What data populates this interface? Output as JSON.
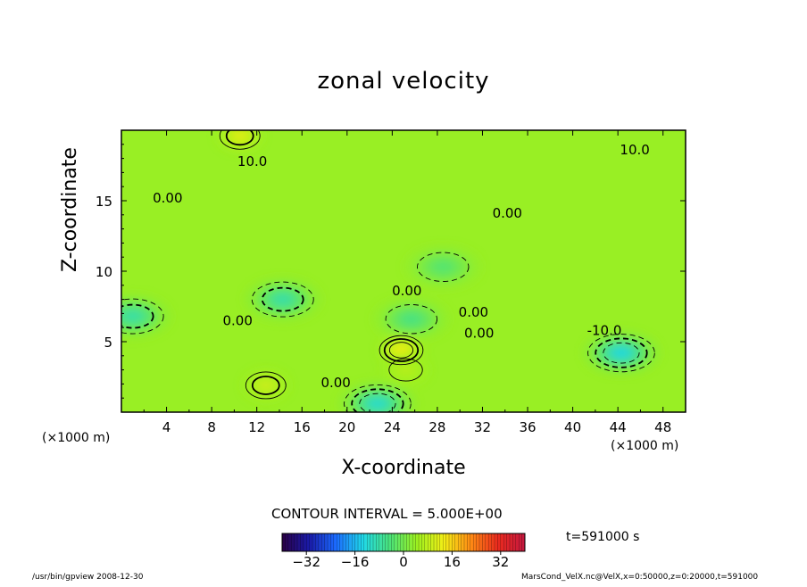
{
  "chart_data": {
    "type": "heatmap",
    "title": "zonal velocity",
    "xlabel": "X-coordinate",
    "ylabel": "Z-coordinate",
    "x_unit_label": "(×1000 m)",
    "z_unit_label": "(×1000 m)",
    "xlim": [
      0,
      50
    ],
    "ylim": [
      0,
      20
    ],
    "x_ticks": [
      4,
      8,
      12,
      16,
      20,
      24,
      28,
      32,
      36,
      40,
      44,
      48
    ],
    "y_ticks": [
      5,
      10,
      15
    ],
    "contour_interval_text": "CONTOUR INTERVAL = 5.000E+00",
    "contour_labels": [
      {
        "text": "10.0",
        "x": 11.6,
        "z": 17.8
      },
      {
        "text": "10.0",
        "x": 45.5,
        "z": 18.6
      },
      {
        "text": "0.00",
        "x": 4.1,
        "z": 15.2
      },
      {
        "text": "0.00",
        "x": 34.2,
        "z": 14.1
      },
      {
        "text": "0.00",
        "x": 25.3,
        "z": 8.6
      },
      {
        "text": "0.00",
        "x": 31.2,
        "z": 7.1
      },
      {
        "text": "0.00",
        "x": 31.7,
        "z": 5.6
      },
      {
        "text": "0.00",
        "x": 10.3,
        "z": 6.5
      },
      {
        "text": "0.00",
        "x": 19.0,
        "z": 2.1
      },
      {
        "text": "-10.0",
        "x": 42.8,
        "z": 5.8
      }
    ],
    "features": [
      {
        "sign": "negative",
        "x": 14.3,
        "z": 8.0,
        "peak": -12
      },
      {
        "sign": "negative",
        "x": 44.3,
        "z": 4.2,
        "peak": -18
      },
      {
        "sign": "negative",
        "x": 22.7,
        "z": 0.6,
        "peak": -16
      },
      {
        "sign": "negative",
        "x": 1.0,
        "z": 6.8,
        "peak": -12
      },
      {
        "sign": "negative",
        "x": 25.7,
        "z": 6.6,
        "peak": -8
      },
      {
        "sign": "negative",
        "x": 28.5,
        "z": 10.3,
        "peak": -6
      },
      {
        "sign": "positive",
        "x": 24.8,
        "z": 4.4,
        "peak": 16
      },
      {
        "sign": "positive",
        "x": 12.8,
        "z": 1.9,
        "peak": 11
      },
      {
        "sign": "positive",
        "x": 10.5,
        "z": 19.6,
        "peak": 14
      },
      {
        "sign": "positive",
        "x": 25.2,
        "z": 3.0,
        "peak": 8
      }
    ],
    "colorbar": {
      "ticks": [
        -32,
        -16,
        0,
        16,
        32
      ],
      "range": [
        -40,
        40
      ],
      "colors": [
        "#2a0045",
        "#1a1aa8",
        "#1b6bff",
        "#20d8e8",
        "#4be37a",
        "#9df01f",
        "#f3ee16",
        "#ff8a14",
        "#ea2a1e",
        "#c41840"
      ]
    },
    "time_label": "t=591000 s",
    "grid": false,
    "legend": "colorbar bottom"
  },
  "footer": {
    "left": "/usr/bin/gpview   2008-12-30",
    "right": "MarsCond_VelX.nc@VelX,x=0:50000,z=0:20000,t=591000"
  }
}
